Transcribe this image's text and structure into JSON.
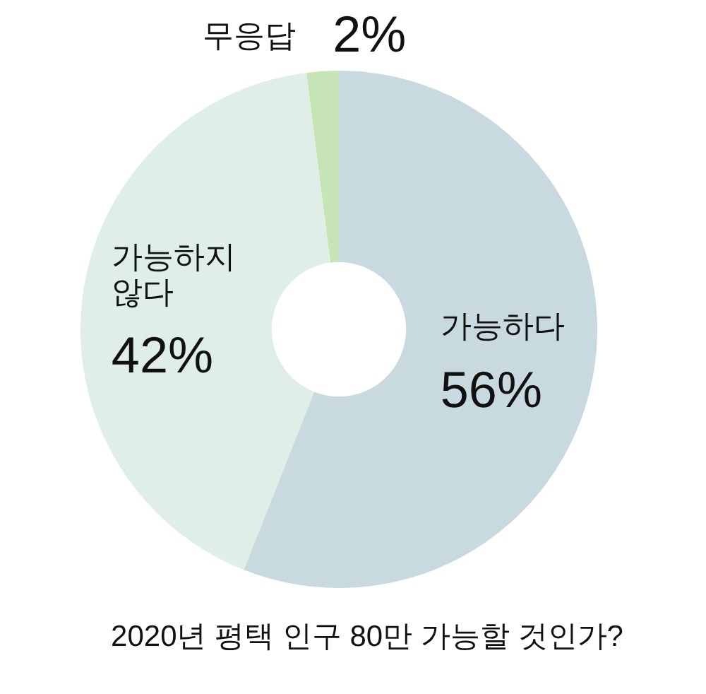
{
  "chart_data": {
    "type": "donut",
    "title": "2020년 평택 인구 80만 가능할 것인가?",
    "categories": [
      "가능하다",
      "가능하지 않다",
      "무응답"
    ],
    "values": [
      56,
      42,
      2
    ],
    "colors": [
      "#c9d9e0",
      "#dfeee6",
      "#c7e4b7"
    ],
    "value_labels": [
      "56%",
      "42%",
      "2%"
    ]
  }
}
